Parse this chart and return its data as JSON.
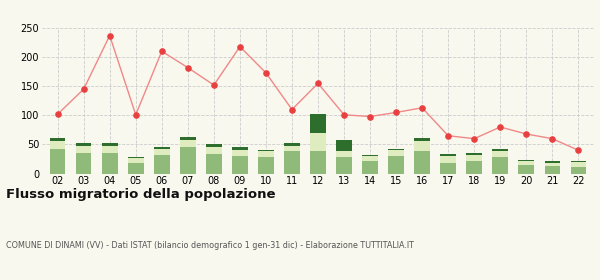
{
  "years": [
    "02",
    "03",
    "04",
    "05",
    "06",
    "07",
    "08",
    "09",
    "10",
    "11",
    "12",
    "13",
    "14",
    "15",
    "16",
    "17",
    "18",
    "19",
    "20",
    "21",
    "22"
  ],
  "iscritti_altri_comuni": [
    42,
    35,
    35,
    18,
    32,
    45,
    33,
    30,
    28,
    38,
    38,
    28,
    22,
    30,
    38,
    18,
    22,
    28,
    15,
    13,
    12
  ],
  "iscritti_estero": [
    14,
    12,
    12,
    8,
    10,
    12,
    12,
    10,
    10,
    10,
    32,
    10,
    8,
    10,
    18,
    12,
    10,
    10,
    6,
    6,
    8
  ],
  "iscritti_altri": [
    5,
    5,
    5,
    2,
    3,
    5,
    5,
    5,
    3,
    5,
    32,
    20,
    2,
    2,
    5,
    3,
    3,
    5,
    2,
    2,
    2
  ],
  "cancellati": [
    102,
    145,
    237,
    101,
    210,
    182,
    152,
    218,
    173,
    110,
    155,
    101,
    98,
    105,
    113,
    65,
    60,
    80,
    68,
    60,
    40
  ],
  "color_altri_comuni": "#8fba7a",
  "color_estero": "#deecc0",
  "color_altri": "#2d6e2d",
  "color_cancellati": "#e84040",
  "line_color": "#f08888",
  "dot_color": "#e84040",
  "title": "Flusso migratorio della popolazione",
  "subtitle": "COMUNE DI DINAMI (VV) - Dati ISTAT (bilancio demografico 1 gen-31 dic) - Elaborazione TUTTITALIA.IT",
  "ylim": [
    0,
    250
  ],
  "yticks": [
    0,
    50,
    100,
    150,
    200,
    250
  ],
  "background_color": "#f8f8ee",
  "grid_color": "#cccccc"
}
